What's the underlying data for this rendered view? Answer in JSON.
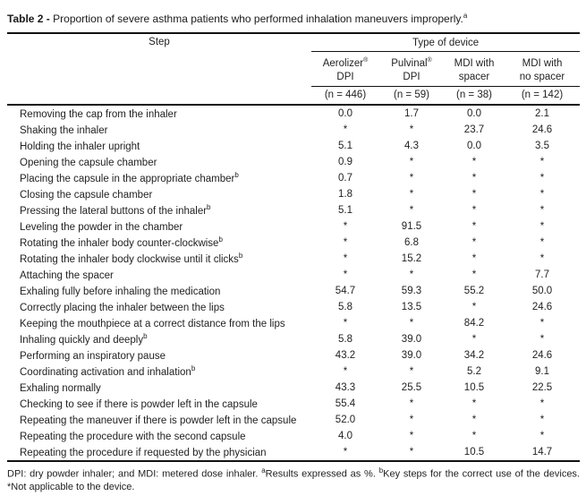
{
  "title": {
    "label": "Table 2 -",
    "text": "Proportion of severe asthma patients who performed inhalation maneuvers improperly.",
    "sup": "a"
  },
  "table": {
    "step_header": "Step",
    "group_header": "Type of device",
    "columns": [
      {
        "name": "Aerolizer",
        "mark": "®",
        "name2": "DPI",
        "n": "(n = 446)"
      },
      {
        "name": "Pulvinal",
        "mark": "®",
        "name2": "DPI",
        "n": "(n = 59)"
      },
      {
        "name": "MDI with",
        "mark": "",
        "name2": "spacer",
        "n": "(n = 38)"
      },
      {
        "name": "MDI with",
        "mark": "",
        "name2": "no spacer",
        "n": "(n = 142)"
      }
    ],
    "rows": [
      {
        "step": "Removing the cap from the inhaler",
        "sup": "",
        "values": [
          "0.0",
          "1.7",
          "0.0",
          "2.1"
        ]
      },
      {
        "step": "Shaking the inhaler",
        "sup": "",
        "values": [
          "*",
          "*",
          "23.7",
          "24.6"
        ]
      },
      {
        "step": "Holding the inhaler upright",
        "sup": "",
        "values": [
          "5.1",
          "4.3",
          "0.0",
          "3.5"
        ]
      },
      {
        "step": "Opening the capsule chamber",
        "sup": "",
        "values": [
          "0.9",
          "*",
          "*",
          "*"
        ]
      },
      {
        "step": "Placing the capsule in the appropriate chamber",
        "sup": "b",
        "values": [
          "0.7",
          "*",
          "*",
          "*"
        ]
      },
      {
        "step": "Closing the capsule chamber",
        "sup": "",
        "values": [
          "1.8",
          "*",
          "*",
          "*"
        ]
      },
      {
        "step": "Pressing the lateral buttons of the inhaler",
        "sup": "b",
        "values": [
          "5.1",
          "*",
          "*",
          "*"
        ]
      },
      {
        "step": "Leveling the powder in the chamber",
        "sup": "",
        "values": [
          "*",
          "91.5",
          "*",
          "*"
        ]
      },
      {
        "step": "Rotating the inhaler body counter-clockwise",
        "sup": "b",
        "values": [
          "*",
          "6.8",
          "*",
          "*"
        ]
      },
      {
        "step": "Rotating the inhaler body clockwise until it clicks",
        "sup": "b",
        "values": [
          "*",
          "15.2",
          "*",
          "*"
        ]
      },
      {
        "step": "Attaching the spacer",
        "sup": "",
        "values": [
          "*",
          "*",
          "*",
          "7.7"
        ]
      },
      {
        "step": "Exhaling fully before inhaling the medication",
        "sup": "",
        "values": [
          "54.7",
          "59.3",
          "55.2",
          "50.0"
        ]
      },
      {
        "step": "Correctly placing the inhaler between the lips",
        "sup": "",
        "values": [
          "5.8",
          "13.5",
          "*",
          "24.6"
        ]
      },
      {
        "step": "Keeping the mouthpiece at a correct distance from the lips",
        "sup": "",
        "values": [
          "*",
          "*",
          "84.2",
          "*"
        ]
      },
      {
        "step": "Inhaling quickly and deeply",
        "sup": "b",
        "values": [
          "5.8",
          "39.0",
          "*",
          "*"
        ]
      },
      {
        "step": "Performing an inspiratory pause",
        "sup": "",
        "values": [
          "43.2",
          "39.0",
          "34.2",
          "24.6"
        ]
      },
      {
        "step": "Coordinating activation and inhalation",
        "sup": "b",
        "values": [
          "*",
          "*",
          "5.2",
          "9.1"
        ]
      },
      {
        "step": "Exhaling normally",
        "sup": "",
        "values": [
          "43.3",
          "25.5",
          "10.5",
          "22.5"
        ]
      },
      {
        "step": "Checking to see if there is powder left in the capsule",
        "sup": "",
        "values": [
          "55.4",
          "*",
          "*",
          "*"
        ]
      },
      {
        "step": "Repeating the maneuver if there is powder left in the capsule",
        "sup": "",
        "values": [
          "52.0",
          "*",
          "*",
          "*"
        ]
      },
      {
        "step": "Repeating the procedure with the second capsule",
        "sup": "",
        "values": [
          "4.0",
          "*",
          "*",
          "*"
        ]
      },
      {
        "step": "Repeating the procedure if requested by the physician",
        "sup": "",
        "values": [
          "*",
          "*",
          "10.5",
          "14.7"
        ]
      }
    ]
  },
  "footnote": {
    "part1": "DPI: dry powder inhaler; and MDI: metered dose inhaler. ",
    "sup_a": "a",
    "part2": "Results expressed as %. ",
    "sup_b": "b",
    "part3": "Key steps for the correct use of the devices. *Not applicable to the device."
  }
}
